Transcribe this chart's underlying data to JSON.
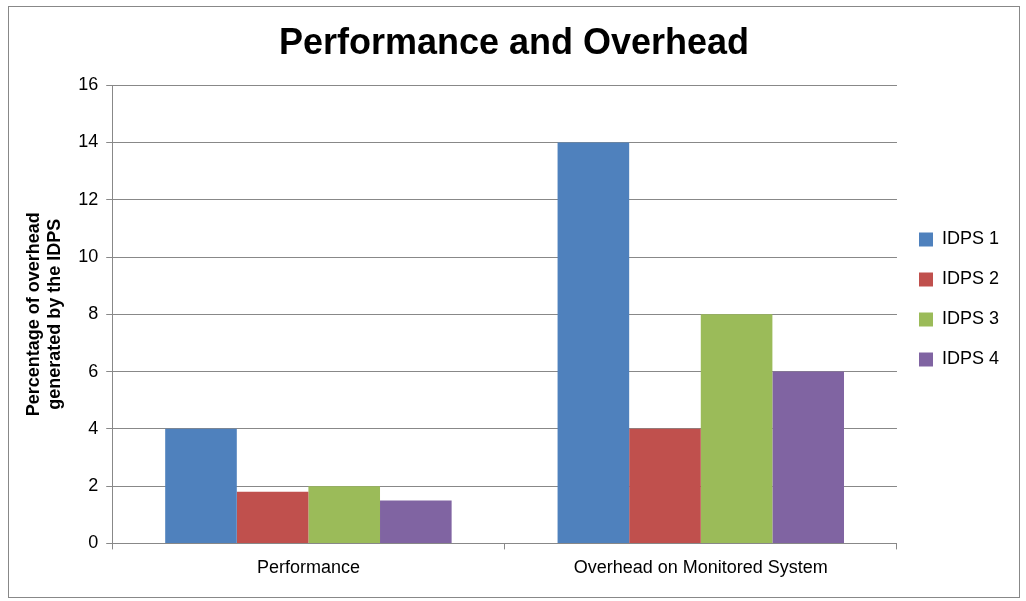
{
  "chart_data": {
    "type": "bar",
    "title": "Performance and Overhead",
    "ylabel": "Percentage of overhead generated by the IDPS",
    "categories": [
      "Performance",
      "Overhead on Monitored System"
    ],
    "series": [
      {
        "name": "IDPS 1",
        "color": "#4f81bd",
        "values": [
          4,
          14
        ]
      },
      {
        "name": "IDPS 2",
        "color": "#c0504d",
        "values": [
          1.8,
          4
        ]
      },
      {
        "name": "IDPS 3",
        "color": "#9bbb59",
        "values": [
          2,
          8
        ]
      },
      {
        "name": "IDPS 4",
        "color": "#8064a2",
        "values": [
          1.5,
          6
        ]
      }
    ],
    "ylim": [
      0,
      16
    ],
    "yticks": [
      0,
      2,
      4,
      6,
      8,
      10,
      12,
      14,
      16
    ],
    "grid": "y",
    "legend": "right"
  }
}
